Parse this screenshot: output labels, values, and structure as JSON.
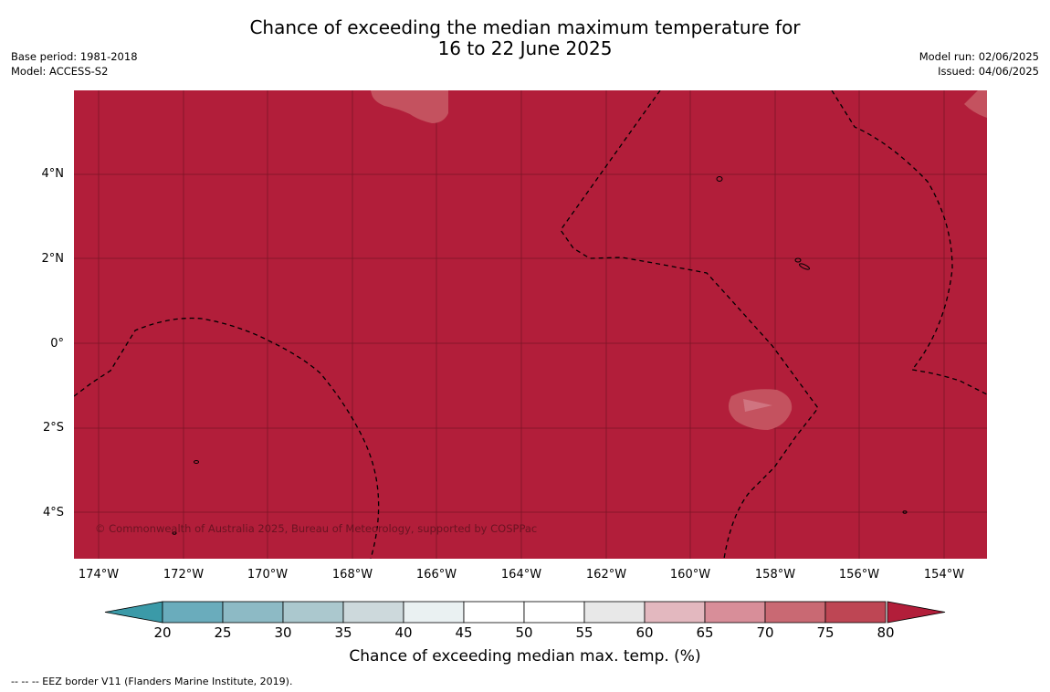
{
  "title_line1": "Chance of exceeding the median maximum temperature for",
  "title_line2": "16 to 22 June 2025",
  "meta_left": {
    "line1": "Base period: 1981-2018",
    "line2": "Model: ACCESS-S2"
  },
  "meta_right": {
    "line1": "Model run: 02/06/2025",
    "line2": "Issued: 04/06/2025"
  },
  "map": {
    "background_color": "#b21e3a",
    "copyright": "© Commonwealth of Australia 2025, Bureau of Meteorology, supported by COSPPac",
    "lat_labels": [
      "4°N",
      "2°N",
      "0°",
      "2°S",
      "4°S"
    ],
    "lon_labels": [
      "174°W",
      "172°W",
      "170°W",
      "168°W",
      "166°W",
      "164°W",
      "162°W",
      "160°W",
      "158°W",
      "156°W",
      "154°W"
    ]
  },
  "colorbar": {
    "title": "Chance of exceeding median max. temp. (%)",
    "tick_labels": [
      "20",
      "25",
      "30",
      "35",
      "40",
      "45",
      "50",
      "55",
      "60",
      "65",
      "70",
      "75",
      "80"
    ],
    "colors": [
      "#3b9aa8",
      "#6aacbc",
      "#8dbac5",
      "#abc8ce",
      "#cdd9dc",
      "#eaf1f2",
      "#ffffff",
      "#ffffff",
      "#e8e8e8",
      "#e3b8bf",
      "#d88e99",
      "#c96973",
      "#be4654",
      "#b21e3a"
    ]
  },
  "legend_note": "-- -- -- EEZ border V11 (Flanders Marine Institute, 2019)."
}
